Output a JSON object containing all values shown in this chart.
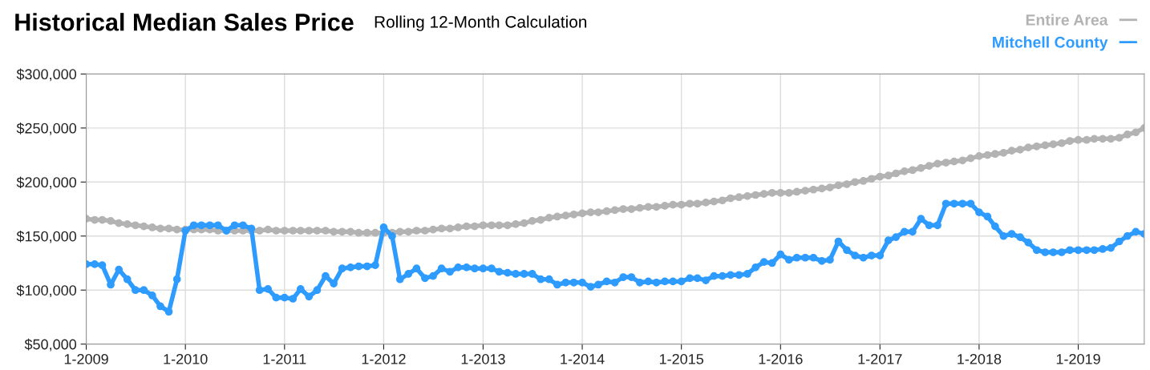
{
  "chart_data": {
    "type": "line",
    "title": "Historical Median Sales Price",
    "subtitle": "Rolling 12-Month Calculation",
    "x": [
      "2009-01",
      "2009-02",
      "2009-03",
      "2009-04",
      "2009-05",
      "2009-06",
      "2009-07",
      "2009-08",
      "2009-09",
      "2009-10",
      "2009-11",
      "2009-12",
      "2010-01",
      "2010-02",
      "2010-03",
      "2010-04",
      "2010-05",
      "2010-06",
      "2010-07",
      "2010-08",
      "2010-09",
      "2010-10",
      "2010-11",
      "2010-12",
      "2011-01",
      "2011-02",
      "2011-03",
      "2011-04",
      "2011-05",
      "2011-06",
      "2011-07",
      "2011-08",
      "2011-09",
      "2011-10",
      "2011-11",
      "2011-12",
      "2012-01",
      "2012-02",
      "2012-03",
      "2012-04",
      "2012-05",
      "2012-06",
      "2012-07",
      "2012-08",
      "2012-09",
      "2012-10",
      "2012-11",
      "2012-12",
      "2013-01",
      "2013-02",
      "2013-03",
      "2013-04",
      "2013-05",
      "2013-06",
      "2013-07",
      "2013-08",
      "2013-09",
      "2013-10",
      "2013-11",
      "2013-12",
      "2014-01",
      "2014-02",
      "2014-03",
      "2014-04",
      "2014-05",
      "2014-06",
      "2014-07",
      "2014-08",
      "2014-09",
      "2014-10",
      "2014-11",
      "2014-12",
      "2015-01",
      "2015-02",
      "2015-03",
      "2015-04",
      "2015-05",
      "2015-06",
      "2015-07",
      "2015-08",
      "2015-09",
      "2015-10",
      "2015-11",
      "2015-12",
      "2016-01",
      "2016-02",
      "2016-03",
      "2016-04",
      "2016-05",
      "2016-06",
      "2016-07",
      "2016-08",
      "2016-09",
      "2016-10",
      "2016-11",
      "2016-12",
      "2017-01",
      "2017-02",
      "2017-03",
      "2017-04",
      "2017-05",
      "2017-06",
      "2017-07",
      "2017-08",
      "2017-09",
      "2017-10",
      "2017-11",
      "2017-12",
      "2018-01",
      "2018-02",
      "2018-03",
      "2018-04",
      "2018-05",
      "2018-06",
      "2018-07",
      "2018-08",
      "2018-09",
      "2018-10",
      "2018-11",
      "2018-12",
      "2019-01",
      "2019-02",
      "2019-03",
      "2019-04",
      "2019-05",
      "2019-06",
      "2019-07",
      "2019-08",
      "2019-09"
    ],
    "series": [
      {
        "name": "Entire Area",
        "color": "#b3b3b3",
        "values": [
          166000,
          165000,
          165000,
          164000,
          162000,
          161000,
          160000,
          159000,
          158000,
          157000,
          157000,
          156000,
          156000,
          156000,
          156000,
          156000,
          155000,
          155000,
          155000,
          155000,
          155000,
          155000,
          156000,
          155000,
          155000,
          155000,
          155000,
          155000,
          155000,
          155000,
          154000,
          154000,
          154000,
          153000,
          153000,
          153000,
          153000,
          153000,
          154000,
          154000,
          155000,
          155000,
          156000,
          157000,
          157000,
          158000,
          159000,
          159000,
          160000,
          160000,
          160000,
          160000,
          161000,
          162000,
          164000,
          165000,
          167000,
          168000,
          169000,
          170000,
          171000,
          172000,
          172000,
          173000,
          174000,
          175000,
          175000,
          176000,
          177000,
          177000,
          178000,
          179000,
          179000,
          180000,
          180000,
          181000,
          182000,
          183000,
          185000,
          186000,
          187000,
          188000,
          189000,
          190000,
          190000,
          190000,
          191000,
          192000,
          193000,
          194000,
          195000,
          197000,
          198000,
          200000,
          201000,
          203000,
          205000,
          206000,
          208000,
          210000,
          211000,
          213000,
          215000,
          217000,
          218000,
          219000,
          220000,
          222000,
          224000,
          225000,
          226000,
          227000,
          229000,
          230000,
          232000,
          233000,
          234000,
          235000,
          236000,
          238000,
          239000,
          239000,
          240000,
          240000,
          240000,
          241000,
          244000,
          246000,
          250000
        ]
      },
      {
        "name": "Mitchell County",
        "color": "#2e9bff",
        "values": [
          124000,
          124000,
          123000,
          105000,
          119000,
          110000,
          100000,
          100000,
          95000,
          85000,
          80000,
          110000,
          155000,
          160000,
          160000,
          160000,
          160000,
          155000,
          160000,
          160000,
          157000,
          100000,
          101000,
          93000,
          93000,
          92000,
          101000,
          94000,
          100000,
          113000,
          106000,
          120000,
          121000,
          122000,
          122000,
          123000,
          158000,
          150000,
          110000,
          115000,
          120000,
          111000,
          113000,
          120000,
          117000,
          121000,
          121000,
          120000,
          120000,
          120000,
          117000,
          116000,
          115000,
          115000,
          115000,
          110000,
          110000,
          105000,
          107000,
          107000,
          107000,
          103000,
          105000,
          108000,
          107000,
          112000,
          112000,
          107000,
          108000,
          107000,
          108000,
          108000,
          108000,
          111000,
          111000,
          109000,
          113000,
          113000,
          114000,
          114000,
          115000,
          121000,
          126000,
          125000,
          133000,
          128000,
          130000,
          130000,
          130000,
          127000,
          128000,
          145000,
          137000,
          132000,
          130000,
          132000,
          132000,
          146000,
          149000,
          154000,
          154000,
          166000,
          160000,
          160000,
          180000,
          180000,
          180000,
          180000,
          172000,
          168000,
          159000,
          150000,
          152000,
          149000,
          144000,
          137000,
          135000,
          135000,
          135000,
          137000,
          137000,
          137000,
          137000,
          138000,
          139000,
          145000,
          150000,
          154000,
          152000
        ]
      }
    ],
    "xlim": [
      "2009-01",
      "2019-09"
    ],
    "xticks": [
      {
        "value": "2009-01",
        "label": "1-2009"
      },
      {
        "value": "2010-01",
        "label": "1-2010"
      },
      {
        "value": "2011-01",
        "label": "1-2011"
      },
      {
        "value": "2012-01",
        "label": "1-2012"
      },
      {
        "value": "2013-01",
        "label": "1-2013"
      },
      {
        "value": "2014-01",
        "label": "1-2014"
      },
      {
        "value": "2015-01",
        "label": "1-2015"
      },
      {
        "value": "2016-01",
        "label": "1-2016"
      },
      {
        "value": "2017-01",
        "label": "1-2017"
      },
      {
        "value": "2018-01",
        "label": "1-2018"
      },
      {
        "value": "2019-01",
        "label": "1-2019"
      }
    ],
    "ylim": [
      50000,
      300000
    ],
    "yticks": [
      {
        "value": 50000,
        "label": "$50,000"
      },
      {
        "value": 100000,
        "label": "$100,000"
      },
      {
        "value": 150000,
        "label": "$150,000"
      },
      {
        "value": 200000,
        "label": "$200,000"
      },
      {
        "value": 250000,
        "label": "$250,000"
      },
      {
        "value": 300000,
        "label": "$300,000"
      }
    ],
    "grid": true,
    "legend": "top right",
    "marker": "circle",
    "line_style": "solid"
  }
}
